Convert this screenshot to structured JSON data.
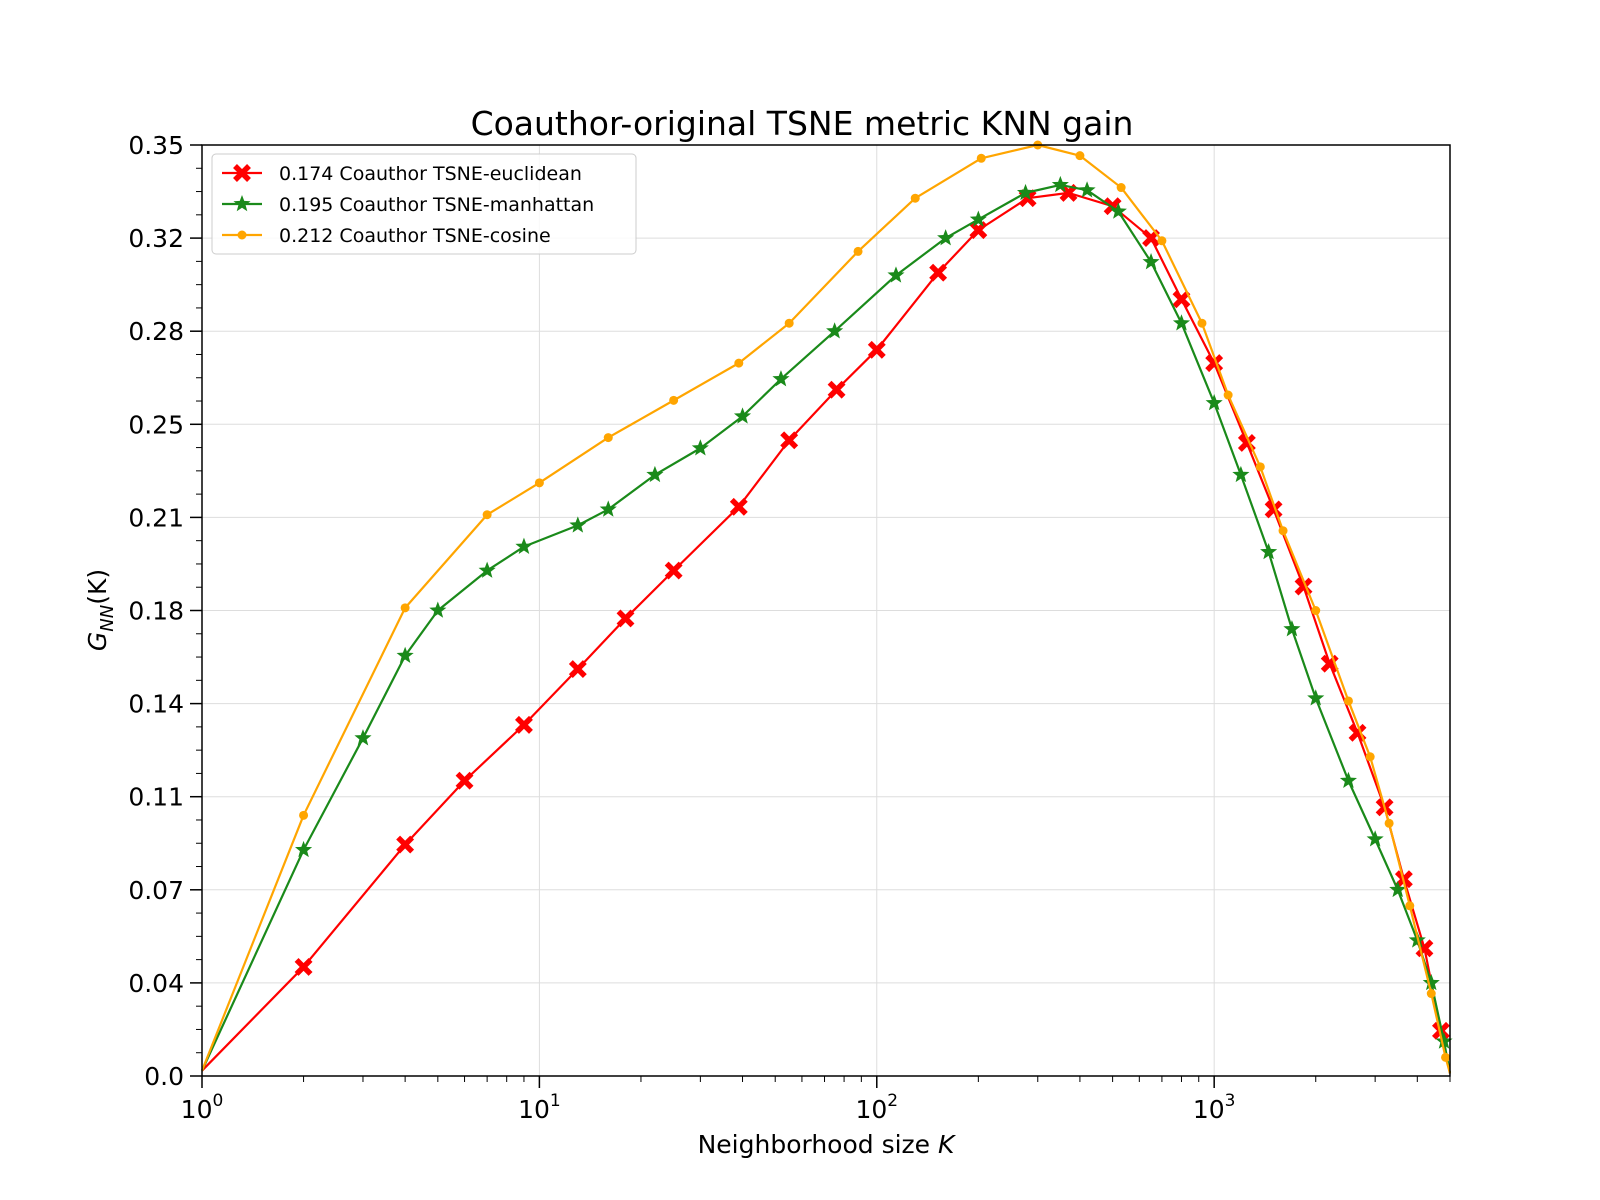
{
  "chart_data": {
    "type": "line",
    "title": "Coauthor-original TSNE metric KNN gain",
    "xlabel": "Neighborhood size K",
    "xlabel_parts": [
      "Neighborhood size ",
      "K"
    ],
    "ylabel_parts": {
      "main": "G",
      "sub": "NN",
      "arg": "(K)"
    },
    "xscale": "log",
    "xlim": [
      1,
      5000
    ],
    "ylim": [
      0.0,
      0.35
    ],
    "xticks": [
      {
        "value": 1,
        "base": "10",
        "exp": "0"
      },
      {
        "value": 10,
        "base": "10",
        "exp": "1"
      },
      {
        "value": 100,
        "base": "10",
        "exp": "2"
      },
      {
        "value": 1000,
        "base": "10",
        "exp": "3"
      }
    ],
    "yticks": [
      {
        "value": 0.0,
        "label": "0.0"
      },
      {
        "value": 0.035,
        "label": "0.04"
      },
      {
        "value": 0.07,
        "label": "0.07"
      },
      {
        "value": 0.105,
        "label": "0.11"
      },
      {
        "value": 0.14,
        "label": "0.14"
      },
      {
        "value": 0.175,
        "label": "0.18"
      },
      {
        "value": 0.21,
        "label": "0.21"
      },
      {
        "value": 0.245,
        "label": "0.25"
      },
      {
        "value": 0.28,
        "label": "0.28"
      },
      {
        "value": 0.315,
        "label": "0.32"
      },
      {
        "value": 0.35,
        "label": "0.35"
      }
    ],
    "grid": true,
    "legend_position": "top-left",
    "series": [
      {
        "name": "0.174 Coauthor TSNE-euclidean",
        "color": "#ff0000",
        "marker": "x",
        "points": [
          [
            1,
            0.002
          ],
          [
            2,
            0.041
          ],
          [
            4,
            0.087
          ],
          [
            6,
            0.111
          ],
          [
            9,
            0.132
          ],
          [
            13,
            0.153
          ],
          [
            18,
            0.172
          ],
          [
            25,
            0.19
          ],
          [
            39,
            0.214
          ],
          [
            55,
            0.239
          ],
          [
            76,
            0.258
          ],
          [
            100,
            0.273
          ],
          [
            152,
            0.302
          ],
          [
            200,
            0.318
          ],
          [
            280,
            0.33
          ],
          [
            370,
            0.332
          ],
          [
            500,
            0.327
          ],
          [
            650,
            0.315
          ],
          [
            800,
            0.292
          ],
          [
            1000,
            0.268
          ],
          [
            1250,
            0.238
          ],
          [
            1500,
            0.213
          ],
          [
            1840,
            0.184
          ],
          [
            2200,
            0.155
          ],
          [
            2660,
            0.129
          ],
          [
            3200,
            0.101
          ],
          [
            3650,
            0.074
          ],
          [
            4200,
            0.048
          ],
          [
            4700,
            0.017
          ],
          [
            5000,
            0.001
          ]
        ]
      },
      {
        "name": "0.195 Coauthor TSNE-manhattan",
        "color": "#1a8a1a",
        "marker": "star",
        "points": [
          [
            1,
            0.002
          ],
          [
            2,
            0.085
          ],
          [
            3,
            0.127
          ],
          [
            4,
            0.158
          ],
          [
            5,
            0.175
          ],
          [
            7,
            0.19
          ],
          [
            9,
            0.199
          ],
          [
            13,
            0.207
          ],
          [
            16,
            0.213
          ],
          [
            22,
            0.226
          ],
          [
            30,
            0.236
          ],
          [
            40,
            0.248
          ],
          [
            52,
            0.262
          ],
          [
            75,
            0.28
          ],
          [
            114,
            0.301
          ],
          [
            160,
            0.315
          ],
          [
            200,
            0.322
          ],
          [
            276,
            0.332
          ],
          [
            350,
            0.335
          ],
          [
            420,
            0.333
          ],
          [
            520,
            0.325
          ],
          [
            650,
            0.306
          ],
          [
            800,
            0.283
          ],
          [
            1000,
            0.253
          ],
          [
            1200,
            0.226
          ],
          [
            1450,
            0.197
          ],
          [
            1700,
            0.168
          ],
          [
            2000,
            0.142
          ],
          [
            2500,
            0.111
          ],
          [
            3000,
            0.089
          ],
          [
            3500,
            0.07
          ],
          [
            4000,
            0.051
          ],
          [
            4400,
            0.035
          ],
          [
            4800,
            0.013
          ],
          [
            5000,
            0.001
          ]
        ]
      },
      {
        "name": "0.212 Coauthor TSNE-cosine",
        "color": "#ffa500",
        "marker": "dot",
        "points": [
          [
            1,
            0.002
          ],
          [
            2,
            0.098
          ],
          [
            4,
            0.176
          ],
          [
            7,
            0.211
          ],
          [
            10,
            0.223
          ],
          [
            16,
            0.24
          ],
          [
            25,
            0.254
          ],
          [
            39,
            0.268
          ],
          [
            55,
            0.283
          ],
          [
            88,
            0.31
          ],
          [
            130,
            0.33
          ],
          [
            204,
            0.345
          ],
          [
            300,
            0.35
          ],
          [
            400,
            0.346
          ],
          [
            530,
            0.334
          ],
          [
            700,
            0.314
          ],
          [
            920,
            0.283
          ],
          [
            1100,
            0.256
          ],
          [
            1370,
            0.229
          ],
          [
            1600,
            0.205
          ],
          [
            2000,
            0.175
          ],
          [
            2500,
            0.141
          ],
          [
            2900,
            0.12
          ],
          [
            3300,
            0.095
          ],
          [
            3800,
            0.064
          ],
          [
            4400,
            0.031
          ],
          [
            4850,
            0.007
          ],
          [
            5000,
            0.001
          ]
        ]
      }
    ]
  }
}
